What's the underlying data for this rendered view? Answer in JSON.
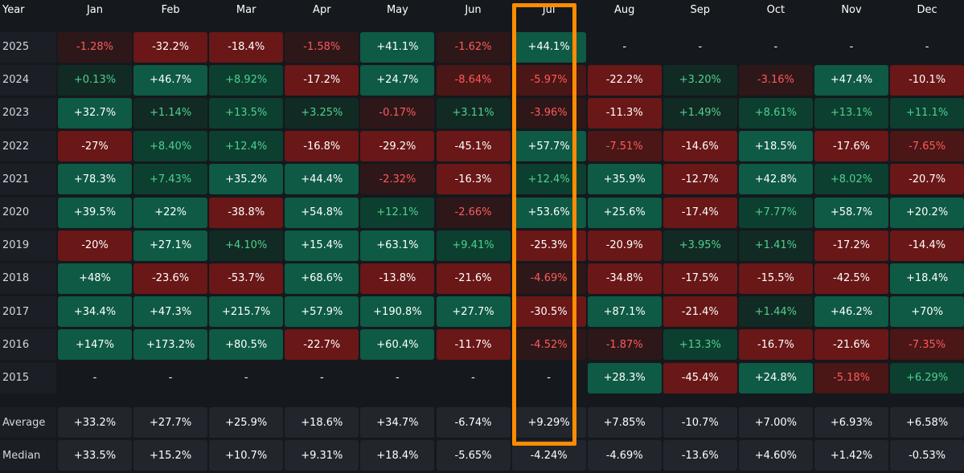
{
  "chart_data": {
    "type": "heatmap",
    "corner_label": "Year",
    "months": [
      "Jan",
      "Feb",
      "Mar",
      "Apr",
      "May",
      "Jun",
      "Jul",
      "Aug",
      "Sep",
      "Oct",
      "Nov",
      "Dec"
    ],
    "rows": [
      {
        "label": "2025",
        "cells": [
          "-1.28%",
          "-32.2%",
          "-18.4%",
          "-1.58%",
          "+41.1%",
          "-1.62%",
          "+44.1%",
          "-",
          "-",
          "-",
          "-",
          "-"
        ]
      },
      {
        "label": "2024",
        "cells": [
          "+0.13%",
          "+46.7%",
          "+8.92%",
          "-17.2%",
          "+24.7%",
          "-8.64%",
          "-5.97%",
          "-22.2%",
          "+3.20%",
          "-3.16%",
          "+47.4%",
          "-10.1%"
        ]
      },
      {
        "label": "2023",
        "cells": [
          "+32.7%",
          "+1.14%",
          "+13.5%",
          "+3.25%",
          "-0.17%",
          "+3.11%",
          "-3.96%",
          "-11.3%",
          "+1.49%",
          "+8.61%",
          "+13.1%",
          "+11.1%"
        ]
      },
      {
        "label": "2022",
        "cells": [
          "-27%",
          "+8.40%",
          "+12.4%",
          "-16.8%",
          "-29.2%",
          "-45.1%",
          "+57.7%",
          "-7.51%",
          "-14.6%",
          "+18.5%",
          "-17.6%",
          "-7.65%"
        ]
      },
      {
        "label": "2021",
        "cells": [
          "+78.3%",
          "+7.43%",
          "+35.2%",
          "+44.4%",
          "-2.32%",
          "-16.3%",
          "+12.4%",
          "+35.9%",
          "-12.7%",
          "+42.8%",
          "+8.02%",
          "-20.7%"
        ]
      },
      {
        "label": "2020",
        "cells": [
          "+39.5%",
          "+22%",
          "-38.8%",
          "+54.8%",
          "+12.1%",
          "-2.66%",
          "+53.6%",
          "+25.6%",
          "-17.4%",
          "+7.77%",
          "+58.7%",
          "+20.2%"
        ]
      },
      {
        "label": "2019",
        "cells": [
          "-20%",
          "+27.1%",
          "+4.10%",
          "+15.4%",
          "+63.1%",
          "+9.41%",
          "-25.3%",
          "-20.9%",
          "+3.95%",
          "+1.41%",
          "-17.2%",
          "-14.4%"
        ]
      },
      {
        "label": "2018",
        "cells": [
          "+48%",
          "-23.6%",
          "-53.7%",
          "+68.6%",
          "-13.8%",
          "-21.6%",
          "-4.69%",
          "-34.8%",
          "-17.5%",
          "-15.5%",
          "-42.5%",
          "+18.4%"
        ]
      },
      {
        "label": "2017",
        "cells": [
          "+34.4%",
          "+47.3%",
          "+215.7%",
          "+57.9%",
          "+190.8%",
          "+27.7%",
          "-30.5%",
          "+87.1%",
          "-21.4%",
          "+1.44%",
          "+46.2%",
          "+70%"
        ]
      },
      {
        "label": "2016",
        "cells": [
          "+147%",
          "+173.2%",
          "+80.5%",
          "-22.7%",
          "+60.4%",
          "-11.7%",
          "-4.52%",
          "-1.87%",
          "+13.3%",
          "-16.7%",
          "-21.6%",
          "-7.35%"
        ]
      },
      {
        "label": "2015",
        "cells": [
          "-",
          "-",
          "-",
          "-",
          "-",
          "-",
          "-",
          "+28.3%",
          "-45.4%",
          "+24.8%",
          "-5.18%",
          "+6.29%"
        ]
      }
    ],
    "summary": [
      {
        "label": "Average",
        "cells": [
          "+33.2%",
          "+27.7%",
          "+25.9%",
          "+18.6%",
          "+34.7%",
          "-6.74%",
          "+9.29%",
          "+7.85%",
          "-10.7%",
          "+7.00%",
          "+6.93%",
          "+6.58%"
        ]
      },
      {
        "label": "Median",
        "cells": [
          "+33.5%",
          "+15.2%",
          "+10.7%",
          "+9.31%",
          "+18.4%",
          "-5.65%",
          "-4.24%",
          "-4.69%",
          "-13.6%",
          "+4.60%",
          "+1.42%",
          "-0.53%"
        ]
      }
    ],
    "highlighted_column": "Jul",
    "colors": {
      "background": "#15181d",
      "neutral_cell": "#22262c",
      "strong_green": "#0e5a44",
      "medium_green": "#0c3f30",
      "weak_green": "#122a24",
      "strong_red": "#6a1717",
      "medium_red": "#4a1616",
      "weak_red": "#2e1719",
      "light_green_text": "#4fd18c",
      "light_red_text": "#ff5a5a",
      "highlight": "#ff8c00"
    }
  }
}
